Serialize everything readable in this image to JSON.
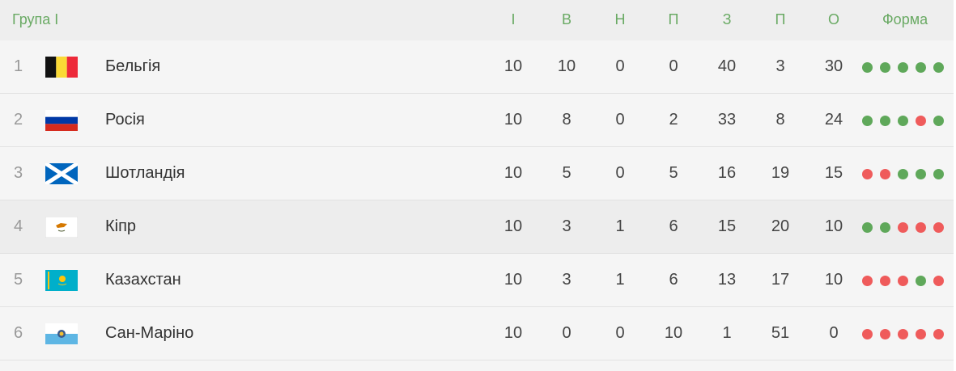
{
  "header": {
    "group": "Група I",
    "columns": [
      "І",
      "В",
      "Н",
      "П",
      "З",
      "П",
      "О"
    ],
    "form": "Форма"
  },
  "colors": {
    "win": "#5fa85a",
    "loss": "#ef5b5b",
    "accent": "#6aaa64"
  },
  "rows": [
    {
      "pos": "1",
      "team": "Бельгія",
      "flag": "belgium",
      "stats": [
        "10",
        "10",
        "0",
        "0",
        "40",
        "3",
        "30"
      ],
      "form": [
        "W",
        "W",
        "W",
        "W",
        "W"
      ]
    },
    {
      "pos": "2",
      "team": "Росія",
      "flag": "russia",
      "stats": [
        "10",
        "8",
        "0",
        "2",
        "33",
        "8",
        "24"
      ],
      "form": [
        "W",
        "W",
        "W",
        "L",
        "W"
      ]
    },
    {
      "pos": "3",
      "team": "Шотландія",
      "flag": "scotland",
      "stats": [
        "10",
        "5",
        "0",
        "5",
        "16",
        "19",
        "15"
      ],
      "form": [
        "L",
        "L",
        "W",
        "W",
        "W"
      ]
    },
    {
      "pos": "4",
      "team": "Кіпр",
      "flag": "cyprus",
      "stats": [
        "10",
        "3",
        "1",
        "6",
        "15",
        "20",
        "10"
      ],
      "form": [
        "W",
        "W",
        "L",
        "L",
        "L"
      ]
    },
    {
      "pos": "5",
      "team": "Казахстан",
      "flag": "kazakhstan",
      "stats": [
        "10",
        "3",
        "1",
        "6",
        "13",
        "17",
        "10"
      ],
      "form": [
        "L",
        "L",
        "L",
        "W",
        "L"
      ]
    },
    {
      "pos": "6",
      "team": "Сан-Маріно",
      "flag": "san-marino",
      "stats": [
        "10",
        "0",
        "0",
        "10",
        "1",
        "51",
        "0"
      ],
      "form": [
        "L",
        "L",
        "L",
        "L",
        "L"
      ]
    }
  ]
}
